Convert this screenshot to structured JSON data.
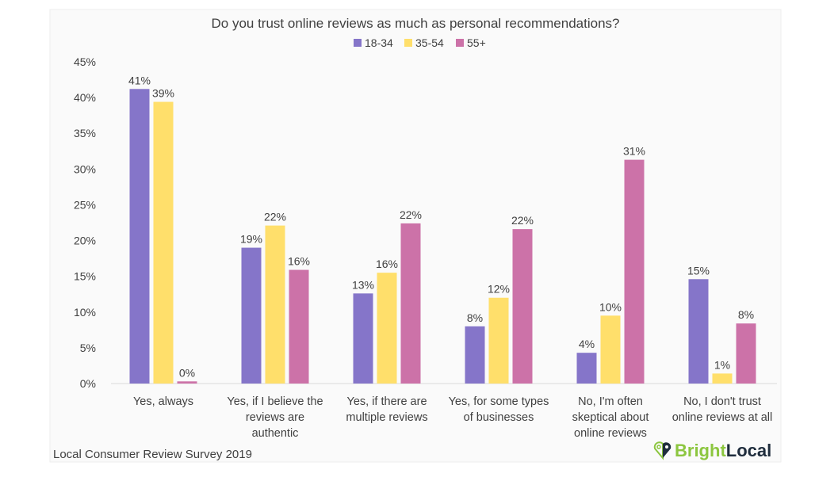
{
  "chart_data": {
    "type": "bar",
    "title": "Do you trust online reviews as much as personal recommendations?",
    "xlabel": "",
    "ylabel": "",
    "ylim": [
      0,
      45
    ],
    "yticks": [
      "0%",
      "5%",
      "10%",
      "15%",
      "20%",
      "25%",
      "30%",
      "35%",
      "40%",
      "45%"
    ],
    "legend_position": "top-center",
    "grid": false,
    "categories": [
      [
        "Yes, always"
      ],
      [
        "Yes, if I believe the",
        "reviews are",
        "authentic"
      ],
      [
        "Yes, if there are",
        "multiple reviews"
      ],
      [
        "Yes, for some types",
        "of businesses"
      ],
      [
        "No, I'm often",
        "skeptical about",
        "online reviews"
      ],
      [
        "No, I don't trust",
        "online reviews at all"
      ]
    ],
    "series": [
      {
        "name": "18-34",
        "color": "#8575c9",
        "values": [
          41.2,
          19.0,
          12.6,
          8.0,
          4.3,
          14.6
        ],
        "labels": [
          "41%",
          "19%",
          "13%",
          "8%",
          "4%",
          "15%"
        ]
      },
      {
        "name": "35-54",
        "color": "#ffdf6b",
        "values": [
          39.4,
          22.1,
          15.5,
          12.0,
          9.5,
          1.4
        ],
        "labels": [
          "39%",
          "22%",
          "16%",
          "12%",
          "10%",
          "1%"
        ]
      },
      {
        "name": "55+",
        "color": "#cc72a8",
        "values": [
          0.3,
          15.9,
          22.4,
          21.6,
          31.3,
          8.4
        ],
        "labels": [
          "0%",
          "16%",
          "22%",
          "22%",
          "31%",
          "8%"
        ]
      }
    ]
  },
  "footer": {
    "source": "Local Consumer Review Survey 2019"
  },
  "logo": {
    "part1": "Bright",
    "part2": "Local",
    "color1": "#8cc63f",
    "color2": "#1f2d3d"
  }
}
